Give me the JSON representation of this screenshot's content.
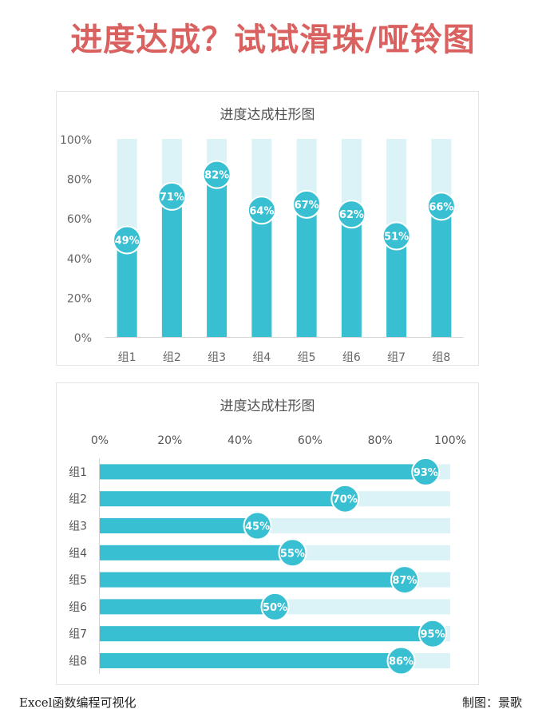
{
  "page_title": "进度达成？试试滑珠/哑铃图",
  "footer": {
    "left": "Excel函数编程可视化",
    "right": "制图：景歌"
  },
  "colors": {
    "title": "#d9615f",
    "bar": "#38c0d2",
    "track": "#dbf3f6",
    "bead_fill": "#38c0d2",
    "bead_stroke": "#ffffff"
  },
  "chart_data": [
    {
      "type": "bar",
      "orientation": "vertical",
      "title": "进度达成柱形图",
      "categories": [
        "组1",
        "组2",
        "组3",
        "组4",
        "组5",
        "组6",
        "组7",
        "组8"
      ],
      "values": [
        49,
        71,
        82,
        64,
        67,
        62,
        51,
        66
      ],
      "data_labels": [
        "49%",
        "71%",
        "82%",
        "64%",
        "67%",
        "62%",
        "51%",
        "66%"
      ],
      "ylim": [
        0,
        100
      ],
      "y_ticks": [
        "0%",
        "20%",
        "40%",
        "60%",
        "80%",
        "100%"
      ],
      "grid": false,
      "legend": "none"
    },
    {
      "type": "bar",
      "orientation": "horizontal",
      "title": "进度达成柱形图",
      "categories": [
        "组1",
        "组2",
        "组3",
        "组4",
        "组5",
        "组6",
        "组7",
        "组8"
      ],
      "values": [
        93,
        70,
        45,
        55,
        87,
        50,
        95,
        86
      ],
      "data_labels": [
        "93%",
        "70%",
        "45%",
        "55%",
        "87%",
        "50%",
        "95%",
        "86%"
      ],
      "xlim": [
        0,
        100
      ],
      "x_ticks": [
        "0%",
        "20%",
        "40%",
        "60%",
        "80%",
        "100%"
      ],
      "grid": false,
      "legend": "none"
    }
  ]
}
